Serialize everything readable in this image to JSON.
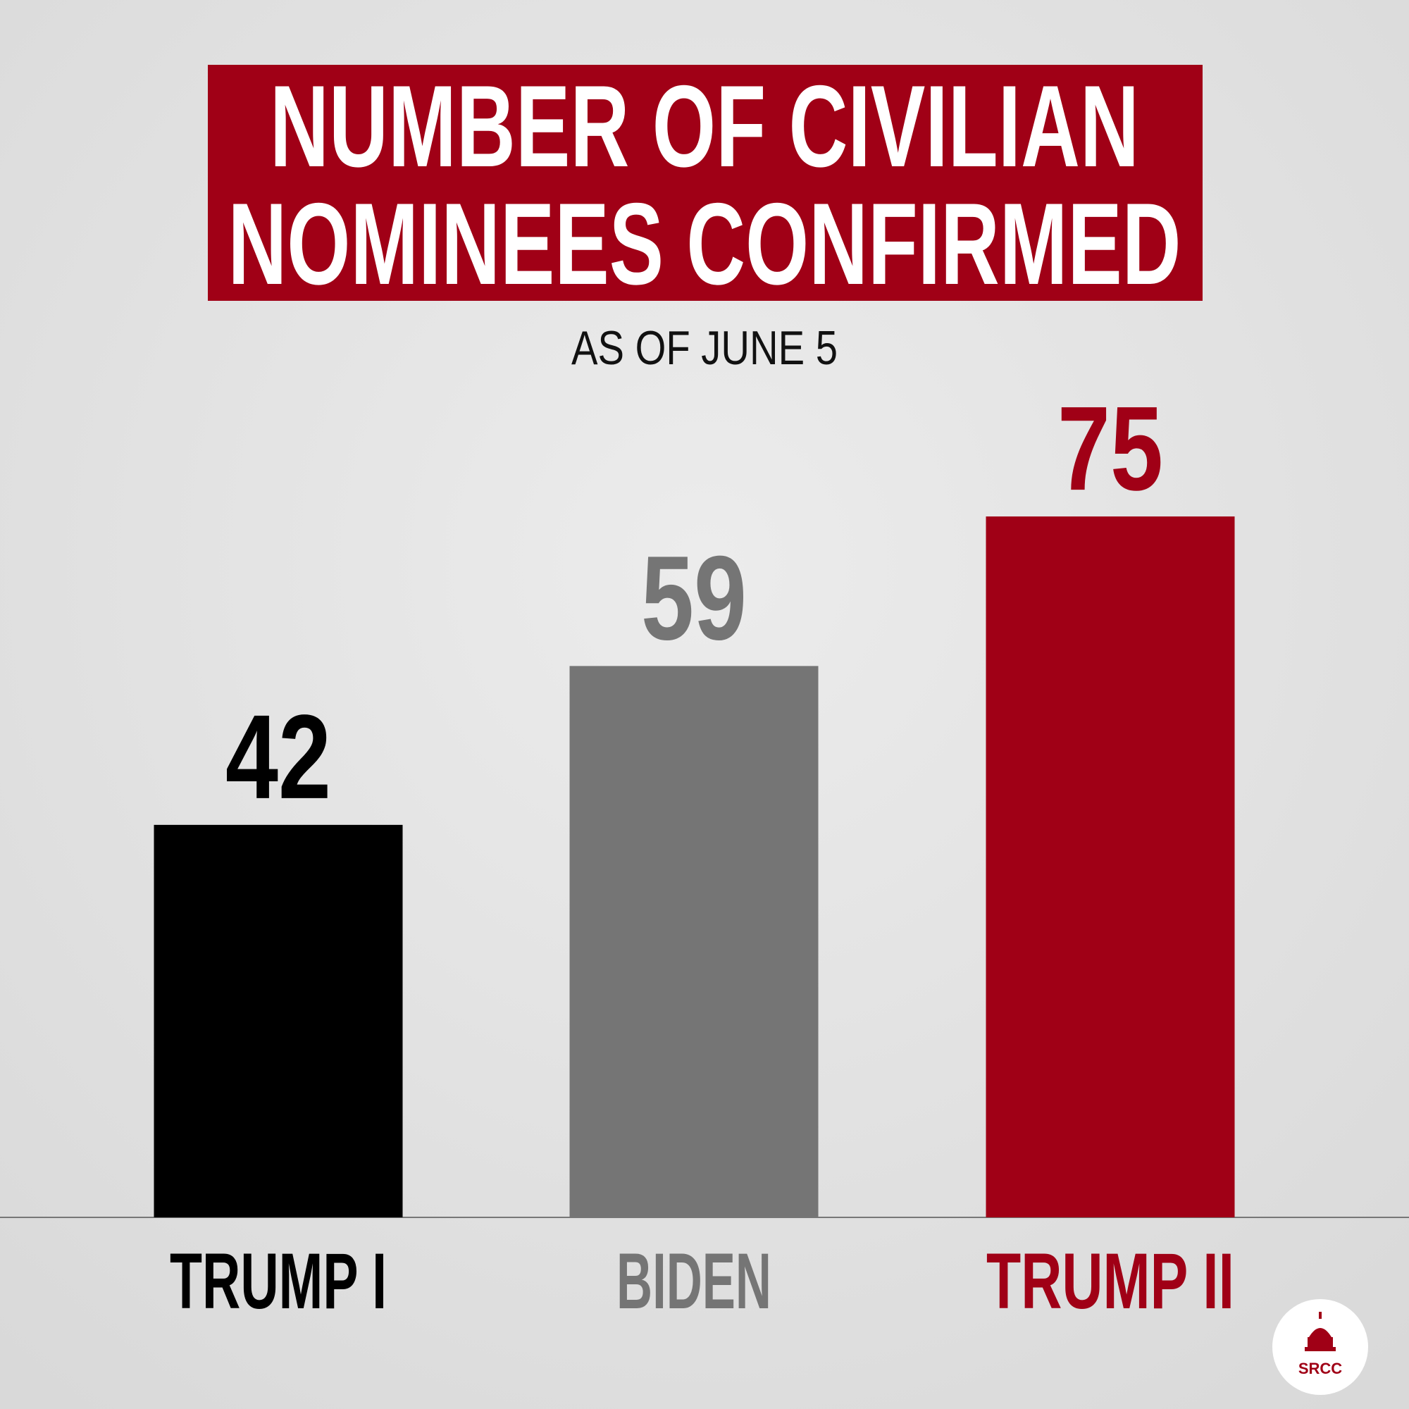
{
  "chart_data": {
    "type": "bar",
    "title": [
      "NUMBER OF CIVILIAN",
      "NOMINEES CONFIRMED"
    ],
    "subtitle": "AS OF JUNE 5",
    "categories": [
      "TRUMP I",
      "BIDEN",
      "TRUMP II"
    ],
    "values": [
      42,
      59,
      75
    ],
    "colors": [
      "#000000",
      "#757575",
      "#a00016"
    ],
    "title_color": "#a00016",
    "logo": "SRCC"
  }
}
